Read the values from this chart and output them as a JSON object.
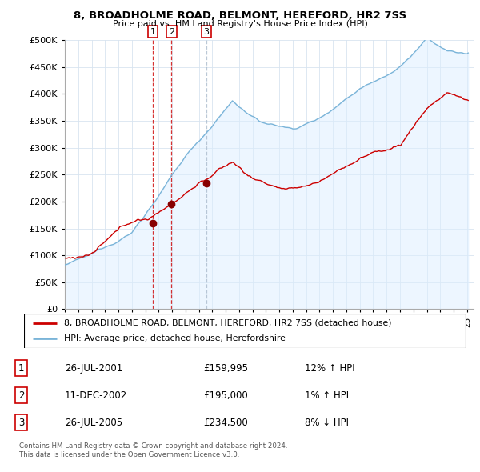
{
  "title": "8, BROADHOLME ROAD, BELMONT, HEREFORD, HR2 7SS",
  "subtitle": "Price paid vs. HM Land Registry's House Price Index (HPI)",
  "legend_line1": "8, BROADHOLME ROAD, BELMONT, HEREFORD, HR2 7SS (detached house)",
  "legend_line2": "HPI: Average price, detached house, Herefordshire",
  "footer1": "Contains HM Land Registry data © Crown copyright and database right 2024.",
  "footer2": "This data is licensed under the Open Government Licence v3.0.",
  "transactions": [
    {
      "num": 1,
      "date": "26-JUL-2001",
      "price": "£159,995",
      "hpi": "12% ↑ HPI",
      "year": 2001.57,
      "price_val": 159995,
      "vline_style": "red_dash"
    },
    {
      "num": 2,
      "date": "11-DEC-2002",
      "price": "£195,000",
      "hpi": "1% ↑ HPI",
      "year": 2002.95,
      "price_val": 195000,
      "vline_style": "red_dash"
    },
    {
      "num": 3,
      "date": "26-JUL-2005",
      "price": "£234,500",
      "hpi": "8% ↓ HPI",
      "year": 2005.57,
      "price_val": 234500,
      "vline_style": "gray_dash"
    }
  ],
  "red_line_color": "#cc0000",
  "blue_line_color": "#7ab4d8",
  "blue_fill_color": "#ddeeff",
  "background_color": "#ffffff",
  "grid_color": "#d8e4f0",
  "ylim": [
    0,
    500000
  ],
  "yticks": [
    0,
    50000,
    100000,
    150000,
    200000,
    250000,
    300000,
    350000,
    400000,
    450000,
    500000
  ],
  "xmin": 1995,
  "xmax": 2025.5
}
